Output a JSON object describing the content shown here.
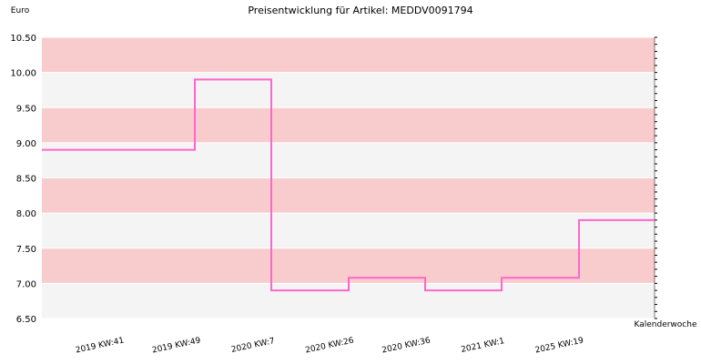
{
  "chart_data": {
    "type": "line",
    "title": "Preisentwicklung für Artikel: MEDDV0091794",
    "ylabel": "Euro",
    "xlabel": "Kalenderwoche",
    "ylim": [
      6.5,
      10.5
    ],
    "yticks": [
      "6.50",
      "7.00",
      "7.50",
      "8.00",
      "8.50",
      "9.00",
      "9.50",
      "10.00",
      "10.50"
    ],
    "categories": [
      "2019 KW:41",
      "2019 KW:49",
      "2020 KW:7",
      "2020 KW:26",
      "2020 KW:36",
      "2021 KW:1",
      "2025 KW:19"
    ],
    "step": true,
    "series": [
      {
        "values": [
          8.9,
          9.9,
          6.9,
          7.08,
          6.9,
          7.08,
          7.9
        ]
      }
    ],
    "band_colors": [
      "#f8cccc",
      "#f4f4f4"
    ],
    "line_color": "#ff66cc",
    "grid": true
  }
}
